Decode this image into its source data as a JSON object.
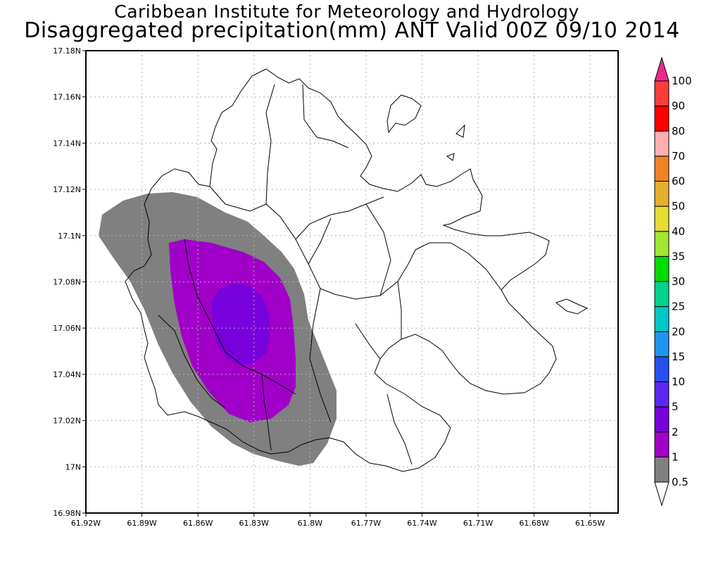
{
  "header": {
    "institute": "Caribbean Institute for Meteorology and Hydrology",
    "product": "Disaggregated precipitation(mm) ANT Valid 00Z 09/10 2014"
  },
  "map": {
    "lon_labels": [
      "61.92W",
      "61.89W",
      "61.86W",
      "61.83W",
      "61.8W",
      "61.77W",
      "61.74W",
      "61.71W",
      "61.68W",
      "61.65W"
    ],
    "lat_labels": [
      "17.18N",
      "17.16N",
      "17.14N",
      "17.12N",
      "17.1N",
      "17.08N",
      "17.06N",
      "17.04N",
      "17.02N",
      "17N",
      "16.98N"
    ],
    "lon_range": [
      -61.92,
      -61.635
    ],
    "lat_range": [
      16.98,
      17.18
    ],
    "grid": "dotted"
  },
  "colorbar": {
    "levels": [
      "0.5",
      "1",
      "2",
      "5",
      "10",
      "15",
      "20",
      "25",
      "30",
      "35",
      "40",
      "50",
      "60",
      "70",
      "80",
      "90",
      "100"
    ],
    "colors": [
      "#ffffff",
      "#808080",
      "#a000c8",
      "#7800dc",
      "#5a28f0",
      "#2850f0",
      "#1e96f0",
      "#00c8c8",
      "#00d28c",
      "#00dc00",
      "#a0e632",
      "#e6dc32",
      "#e6af2d",
      "#f08228",
      "#ffafaf",
      "#ff0000",
      "#ff3c3c",
      "#f0288c"
    ]
  },
  "chart_data": {
    "type": "heatmap",
    "variable": "Disaggregated precipitation(mm)",
    "region": "ANT",
    "valid": "00Z 09/10 2014",
    "shaded_regions": [
      {
        "range_mm": [
          1,
          2
        ],
        "color": "#808080"
      },
      {
        "range_mm": [
          2,
          5
        ],
        "color": "#a000c8"
      },
      {
        "range_mm": [
          5,
          10
        ],
        "color": "#7800dc"
      }
    ]
  }
}
